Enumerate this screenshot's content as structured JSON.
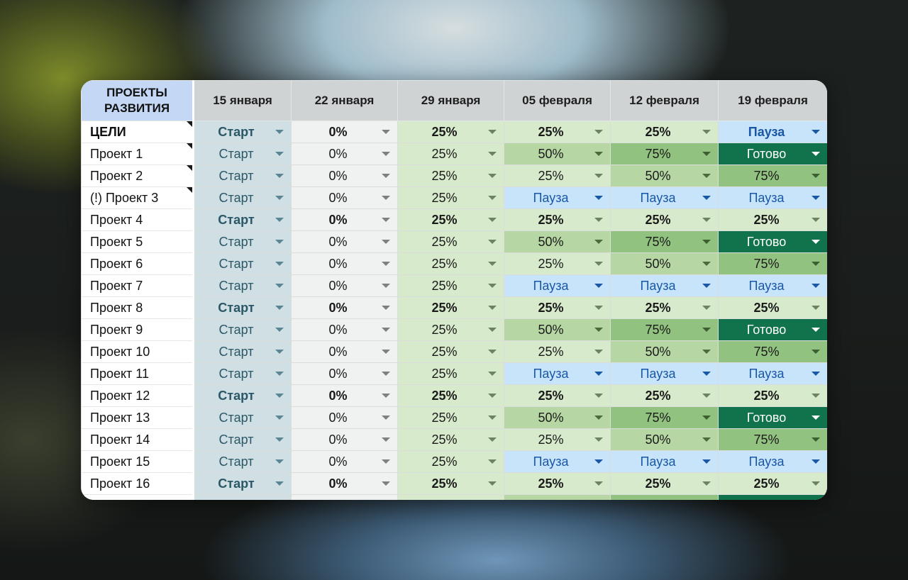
{
  "header": {
    "corner": "ПРОЕКТЫ РАЗВИТИЯ",
    "dates": [
      "15 января",
      "22 января",
      "29 января",
      "05 февраля",
      "12 февраля",
      "19 февраля"
    ]
  },
  "status_colors": {
    "start": "#cfdfe4",
    "zero": "#f0f1f1",
    "p25": "#d7eacb",
    "p50": "#b6d7a3",
    "p75": "#92c27f",
    "done": "#11734b",
    "pause": "#c7e4fb"
  },
  "rows": [
    {
      "name": "ЦЕЛИ",
      "values": [
        "Старт",
        "0%",
        "25%",
        "25%",
        "25%",
        "Пауза"
      ]
    },
    {
      "name": "Проект 1",
      "values": [
        "Старт",
        "0%",
        "25%",
        "50%",
        "75%",
        "Готово"
      ]
    },
    {
      "name": "Проект 2",
      "values": [
        "Старт",
        "0%",
        "25%",
        "25%",
        "50%",
        "75%"
      ]
    },
    {
      "name": "(!) Проект 3",
      "values": [
        "Старт",
        "0%",
        "25%",
        "Пауза",
        "Пауза",
        "Пауза"
      ]
    },
    {
      "name": "Проект 4",
      "values": [
        "Старт",
        "0%",
        "25%",
        "25%",
        "25%",
        "25%"
      ]
    },
    {
      "name": "Проект 5",
      "values": [
        "Старт",
        "0%",
        "25%",
        "50%",
        "75%",
        "Готово"
      ]
    },
    {
      "name": "Проект 6",
      "values": [
        "Старт",
        "0%",
        "25%",
        "25%",
        "50%",
        "75%"
      ]
    },
    {
      "name": "Проект 7",
      "values": [
        "Старт",
        "0%",
        "25%",
        "Пауза",
        "Пауза",
        "Пауза"
      ]
    },
    {
      "name": "Проект 8",
      "values": [
        "Старт",
        "0%",
        "25%",
        "25%",
        "25%",
        "25%"
      ]
    },
    {
      "name": "Проект 9",
      "values": [
        "Старт",
        "0%",
        "25%",
        "50%",
        "75%",
        "Готово"
      ]
    },
    {
      "name": "Проект 10",
      "values": [
        "Старт",
        "0%",
        "25%",
        "25%",
        "50%",
        "75%"
      ]
    },
    {
      "name": "Проект 11",
      "values": [
        "Старт",
        "0%",
        "25%",
        "Пауза",
        "Пауза",
        "Пауза"
      ]
    },
    {
      "name": "Проект 12",
      "values": [
        "Старт",
        "0%",
        "25%",
        "25%",
        "25%",
        "25%"
      ]
    },
    {
      "name": "Проект 13",
      "values": [
        "Старт",
        "0%",
        "25%",
        "50%",
        "75%",
        "Готово"
      ]
    },
    {
      "name": "Проект 14",
      "values": [
        "Старт",
        "0%",
        "25%",
        "25%",
        "50%",
        "75%"
      ]
    },
    {
      "name": "Проект 15",
      "values": [
        "Старт",
        "0%",
        "25%",
        "Пауза",
        "Пауза",
        "Пауза"
      ]
    },
    {
      "name": "Проект 16",
      "values": [
        "Старт",
        "0%",
        "25%",
        "25%",
        "25%",
        "25%"
      ]
    }
  ]
}
